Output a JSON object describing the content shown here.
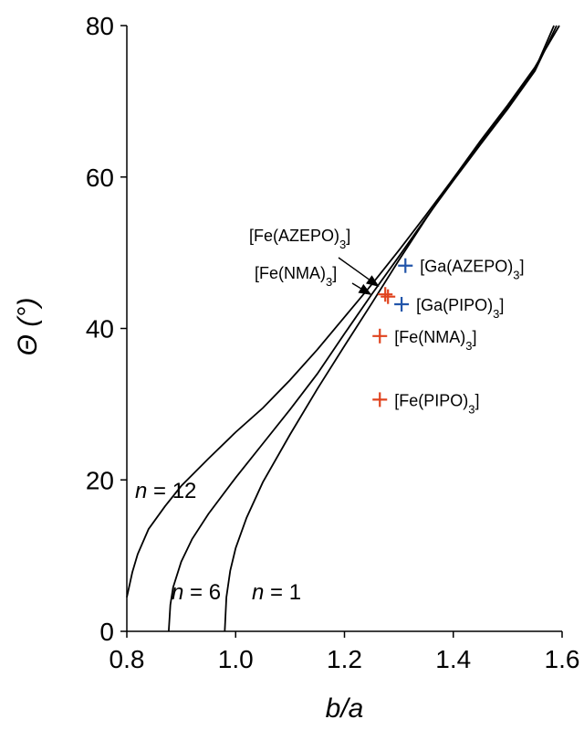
{
  "chart_data": {
    "type": "line",
    "xlabel": "b/a",
    "ylabel": "Θ (°)",
    "xlim": [
      0.8,
      1.6
    ],
    "ylim": [
      0,
      80
    ],
    "x_ticks": [
      "0.8",
      "1.0",
      "1.2",
      "1.4",
      "1.6"
    ],
    "y_ticks": [
      "0",
      "20",
      "40",
      "60",
      "80"
    ],
    "grid": false,
    "series": [
      {
        "name": "n = 12",
        "label_prefix": "n",
        "label_suffix": " = 12",
        "points": [
          [
            0.8,
            4.5
          ],
          [
            0.81,
            7.8
          ],
          [
            0.82,
            10.2
          ],
          [
            0.84,
            13.5
          ],
          [
            0.87,
            16.5
          ],
          [
            0.9,
            19.2
          ],
          [
            0.95,
            22.8
          ],
          [
            1.0,
            26.3
          ],
          [
            1.05,
            29.5
          ],
          [
            1.1,
            33.2
          ],
          [
            1.15,
            37.2
          ],
          [
            1.2,
            41.5
          ],
          [
            1.25,
            45.8
          ],
          [
            1.3,
            50.3
          ],
          [
            1.35,
            55.0
          ],
          [
            1.4,
            59.8
          ],
          [
            1.45,
            64.5
          ],
          [
            1.5,
            69.2
          ],
          [
            1.55,
            74.2
          ],
          [
            1.585,
            80.0
          ]
        ]
      },
      {
        "name": "n = 6",
        "label_prefix": "n",
        "label_suffix": " = 6",
        "points": [
          [
            0.877,
            0.0
          ],
          [
            0.88,
            3.5
          ],
          [
            0.885,
            5.8
          ],
          [
            0.9,
            9.2
          ],
          [
            0.92,
            12.2
          ],
          [
            0.95,
            15.5
          ],
          [
            1.0,
            20.3
          ],
          [
            1.05,
            24.8
          ],
          [
            1.1,
            29.3
          ],
          [
            1.15,
            34.0
          ],
          [
            1.2,
            39.3
          ],
          [
            1.25,
            44.5
          ],
          [
            1.3,
            49.5
          ],
          [
            1.35,
            54.6
          ],
          [
            1.4,
            59.5
          ],
          [
            1.45,
            64.3
          ],
          [
            1.5,
            69.0
          ],
          [
            1.55,
            74.0
          ],
          [
            1.59,
            80.0
          ]
        ]
      },
      {
        "name": "n = 1",
        "label_prefix": "n",
        "label_suffix": " = 1",
        "points": [
          [
            0.98,
            0.0
          ],
          [
            0.983,
            4.5
          ],
          [
            0.99,
            8.0
          ],
          [
            1.0,
            11.0
          ],
          [
            1.02,
            15.0
          ],
          [
            1.05,
            19.7
          ],
          [
            1.1,
            26.0
          ],
          [
            1.15,
            32.0
          ],
          [
            1.2,
            37.7
          ],
          [
            1.25,
            43.3
          ],
          [
            1.3,
            49.0
          ],
          [
            1.35,
            54.5
          ],
          [
            1.4,
            59.8
          ],
          [
            1.45,
            64.8
          ],
          [
            1.5,
            69.5
          ],
          [
            1.55,
            74.5
          ],
          [
            1.595,
            80.0
          ]
        ]
      }
    ],
    "markers": [
      {
        "label": "[Ga(AZEPO)",
        "sub": "3",
        "close": "]",
        "x": 1.312,
        "y": 48.3,
        "color": "#2255aa"
      },
      {
        "label": "[Ga(PIPO)",
        "sub": "3",
        "close": "]",
        "x": 1.305,
        "y": 43.2,
        "color": "#2255aa"
      },
      {
        "label": "[Fe(NMA)",
        "sub": "3",
        "close": "]",
        "x": 1.265,
        "y": 39.0,
        "color": "#e0431e"
      },
      {
        "label": "[Fe(PIPO)",
        "sub": "3",
        "close": "]",
        "x": 1.265,
        "y": 30.6,
        "color": "#e0431e"
      },
      {
        "label": "",
        "sub": "",
        "close": "",
        "x": 1.275,
        "y": 44.5,
        "color": "#e0431e"
      },
      {
        "label": "",
        "sub": "",
        "close": "",
        "x": 1.28,
        "y": 44.2,
        "color": "#e0431e"
      }
    ],
    "arrow_annotations": [
      {
        "label": "[Fe(AZEPO)",
        "sub": "3",
        "close": "]",
        "target_x": 1.262,
        "target_y": 45.6
      },
      {
        "label": "[Fe(NMA)",
        "sub": "3",
        "close": "]",
        "target_x": 1.248,
        "target_y": 44.5
      }
    ]
  }
}
